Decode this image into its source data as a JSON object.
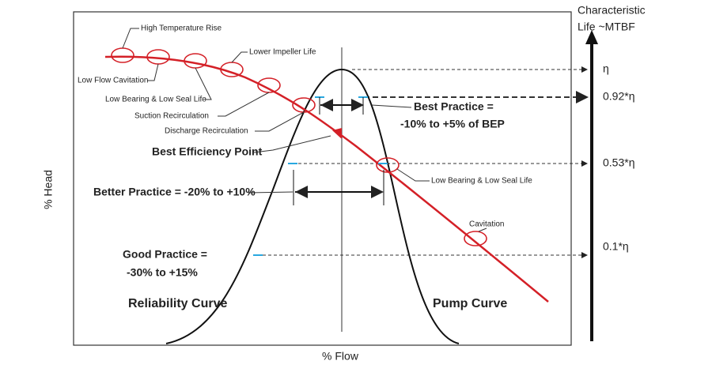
{
  "axes": {
    "y_label": "% Head",
    "x_label": "% Flow",
    "right_title_1": "Characteristic",
    "right_title_2": "Life ~MTBF"
  },
  "levels": [
    "η",
    "0.92*η",
    "0.53*η",
    "0.1*η"
  ],
  "annotations": {
    "high_temp": "High Temperature Rise",
    "lower_impeller": "Lower Impeller Life",
    "low_flow_cav": "Low Flow Cavitation",
    "low_bearing_left": "Low Bearing & Low Seal Life",
    "suction": "Suction Recirculation",
    "discharge": "Discharge Recirculation",
    "bep": "Best Efficiency Point",
    "best_1": "Best Practice =",
    "best_2": "-10% to +5% of BEP",
    "better": "Better Practice = -20% to +10%",
    "low_bearing_right": "Low Bearing & Low Seal Life",
    "cavitation": "Cavitation",
    "good_1": "Good Practice =",
    "good_2": "-30% to +15%",
    "reliability": "Reliability Curve",
    "pump": "Pump Curve"
  }
}
